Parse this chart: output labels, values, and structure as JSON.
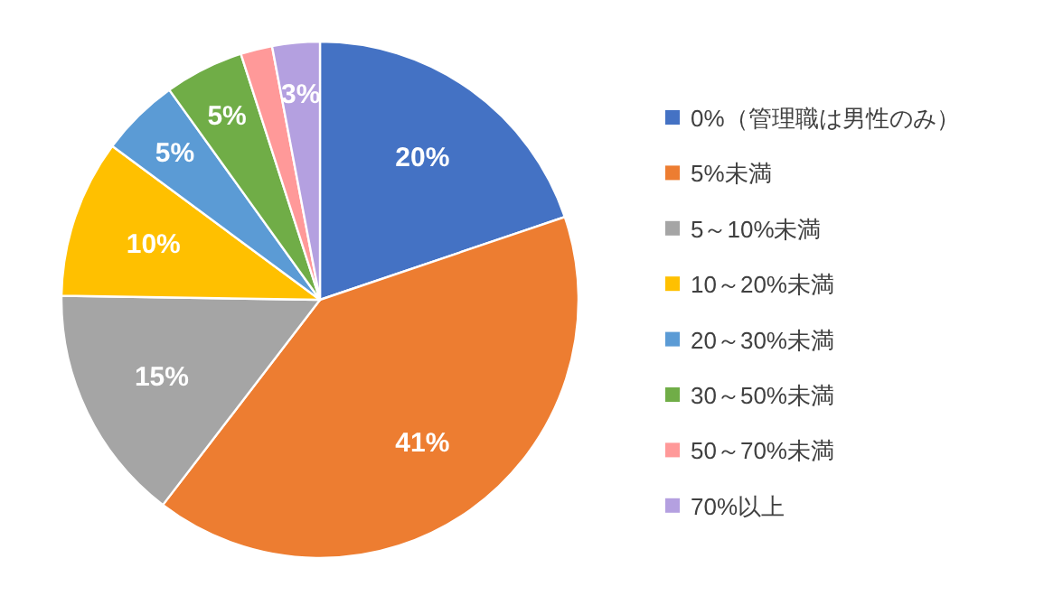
{
  "chart_data": {
    "type": "pie",
    "categories": [
      "0%（管理職は男性のみ）",
      "5%未満",
      "5～10%未満",
      "10～20%未満",
      "20～30%未満",
      "30～50%未満",
      "50～70%未満",
      "70%以上"
    ],
    "values": [
      20,
      41,
      15,
      10,
      5,
      5,
      2,
      3
    ],
    "value_labels": [
      "20%",
      "41%",
      "15%",
      "10%",
      "5%",
      "5%",
      null,
      "3%"
    ],
    "colors": [
      "#4472c4",
      "#ed7d31",
      "#a5a5a5",
      "#ffc000",
      "#5b9bd5",
      "#70ad47",
      "#ff9999",
      "#b4a0e0"
    ],
    "legend": "right"
  }
}
